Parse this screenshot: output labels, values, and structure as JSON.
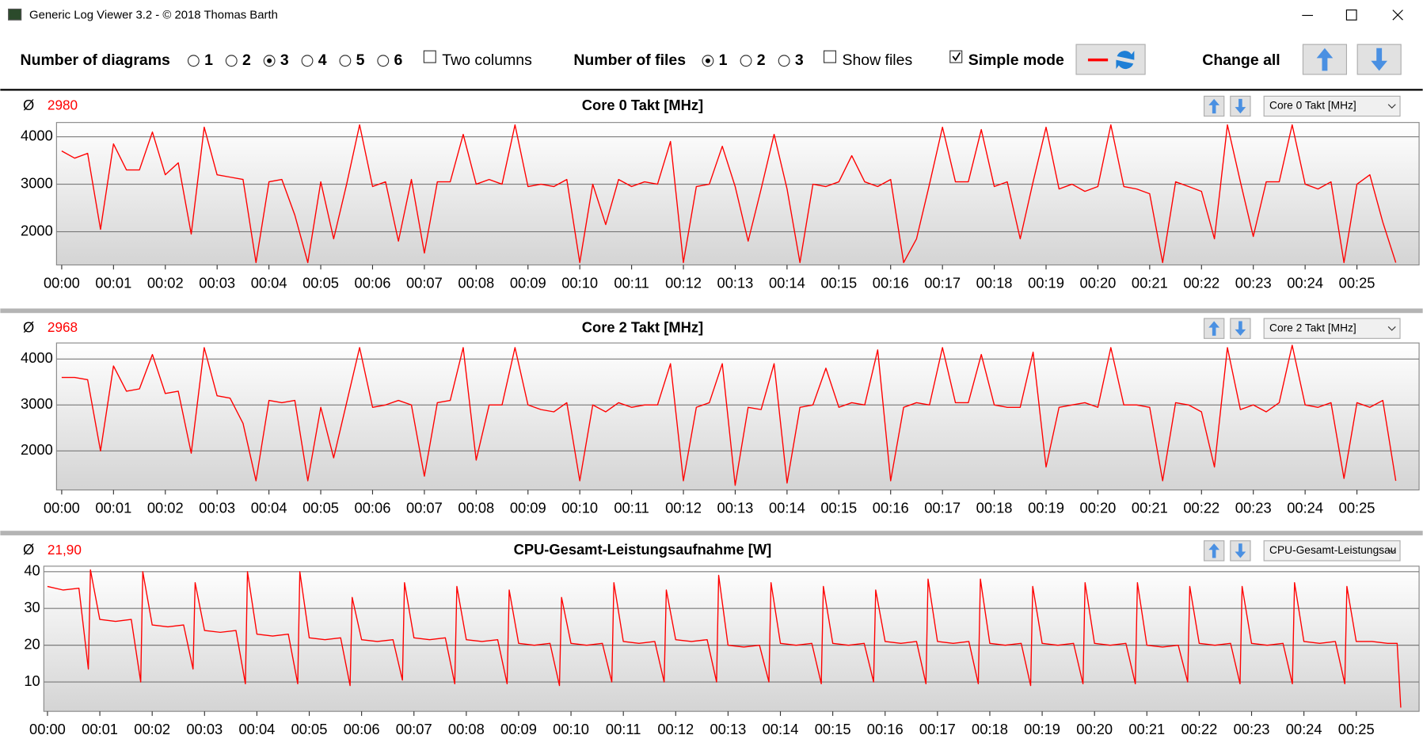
{
  "window": {
    "title": "Generic Log Viewer 3.2 - © 2018 Thomas Barth"
  },
  "toolbar": {
    "diagrams_label": "Number of diagrams",
    "diagram_options": [
      "1",
      "2",
      "3",
      "4",
      "5",
      "6"
    ],
    "diagrams_selected": 2,
    "two_columns": {
      "label": "Two columns",
      "checked": false
    },
    "files_label": "Number of files",
    "file_options": [
      "1",
      "2",
      "3"
    ],
    "files_selected": 0,
    "show_files": {
      "label": "Show files",
      "checked": false
    },
    "simple_mode": {
      "label": "Simple mode",
      "checked": true
    },
    "change_all_label": "Change all"
  },
  "chart_data": [
    {
      "type": "line",
      "title": "Core 0 Takt [MHz]",
      "average_label": "Ø",
      "average": "2980",
      "selector": "Core 0 Takt [MHz]",
      "color": "#ff0000",
      "grid": true,
      "x": [
        0,
        0.25,
        0.5,
        0.75,
        1,
        1.25,
        1.5,
        1.75,
        2,
        2.25,
        2.5,
        2.75,
        3,
        3.25,
        3.5,
        3.75,
        4,
        4.25,
        4.5,
        4.75,
        5,
        5.25,
        5.5,
        5.75,
        6,
        6.25,
        6.5,
        6.75,
        7,
        7.25,
        7.5,
        7.75,
        8,
        8.25,
        8.5,
        8.75,
        9,
        9.25,
        9.5,
        9.75,
        10,
        10.25,
        10.5,
        10.75,
        11,
        11.25,
        11.5,
        11.75,
        12,
        12.25,
        12.5,
        12.75,
        13,
        13.25,
        13.5,
        13.75,
        14,
        14.25,
        14.5,
        14.75,
        15,
        15.25,
        15.5,
        15.75,
        16,
        16.25,
        16.5,
        16.75,
        17,
        17.25,
        17.5,
        17.75,
        18,
        18.25,
        18.5,
        18.75,
        19,
        19.25,
        19.5,
        19.75,
        20,
        20.25,
        20.5,
        20.75,
        21,
        21.25,
        21.5,
        21.75,
        22,
        22.25,
        22.5,
        22.75,
        23,
        23.25,
        23.5,
        23.75,
        24,
        24.25,
        24.5,
        24.75,
        25,
        25.25,
        25.5,
        25.75
      ],
      "values": [
        3700,
        3550,
        3650,
        2050,
        3850,
        3300,
        3300,
        4100,
        3200,
        3450,
        1950,
        4200,
        3200,
        3150,
        3100,
        1350,
        3050,
        3100,
        2350,
        1350,
        3050,
        1850,
        3000,
        4250,
        2950,
        3050,
        1800,
        3100,
        1550,
        3050,
        3050,
        4050,
        3000,
        3100,
        3000,
        4250,
        2950,
        3000,
        2950,
        3100,
        1350,
        3000,
        2150,
        3100,
        2950,
        3050,
        3000,
        3900,
        1350,
        2950,
        3000,
        3800,
        2950,
        1800,
        2900,
        4050,
        2900,
        1350,
        3000,
        2950,
        3050,
        3600,
        3050,
        2950,
        3100,
        1350,
        1850,
        3000,
        4200,
        3050,
        3050,
        4150,
        2950,
        3050,
        1850,
        3050,
        4200,
        2900,
        3000,
        2850,
        2950,
        4250,
        2950,
        2900,
        2800,
        1350,
        3050,
        2950,
        2850,
        1850,
        4250,
        3050,
        1900,
        3050,
        3050,
        4250,
        3000,
        2900,
        3050,
        1350,
        3000,
        3200,
        2200,
        1350
      ],
      "xlim": [
        -0.1,
        26.2
      ],
      "xticks": [
        {
          "value": 0,
          "label": "00:00"
        },
        {
          "value": 1,
          "label": "00:01"
        },
        {
          "value": 2,
          "label": "00:02"
        },
        {
          "value": 3,
          "label": "00:03"
        },
        {
          "value": 4,
          "label": "00:04"
        },
        {
          "value": 5,
          "label": "00:05"
        },
        {
          "value": 6,
          "label": "00:06"
        },
        {
          "value": 7,
          "label": "00:07"
        },
        {
          "value": 8,
          "label": "00:08"
        },
        {
          "value": 9,
          "label": "00:09"
        },
        {
          "value": 10,
          "label": "00:10"
        },
        {
          "value": 11,
          "label": "00:11"
        },
        {
          "value": 12,
          "label": "00:12"
        },
        {
          "value": 13,
          "label": "00:13"
        },
        {
          "value": 14,
          "label": "00:14"
        },
        {
          "value": 15,
          "label": "00:15"
        },
        {
          "value": 16,
          "label": "00:16"
        },
        {
          "value": 17,
          "label": "00:17"
        },
        {
          "value": 18,
          "label": "00:18"
        },
        {
          "value": 19,
          "label": "00:19"
        },
        {
          "value": 20,
          "label": "00:20"
        },
        {
          "value": 21,
          "label": "00:21"
        },
        {
          "value": 22,
          "label": "00:22"
        },
        {
          "value": 23,
          "label": "00:23"
        },
        {
          "value": 24,
          "label": "00:24"
        },
        {
          "value": 25,
          "label": "00:25"
        }
      ],
      "ylim": [
        1300,
        4300
      ],
      "yticks": [
        2000,
        3000,
        4000
      ]
    },
    {
      "type": "line",
      "title": "Core 2 Takt [MHz]",
      "average_label": "Ø",
      "average": "2968",
      "selector": "Core 2 Takt [MHz]",
      "color": "#ff0000",
      "grid": true,
      "x": [
        0,
        0.25,
        0.5,
        0.75,
        1,
        1.25,
        1.5,
        1.75,
        2,
        2.25,
        2.5,
        2.75,
        3,
        3.25,
        3.5,
        3.75,
        4,
        4.25,
        4.5,
        4.75,
        5,
        5.25,
        5.5,
        5.75,
        6,
        6.25,
        6.5,
        6.75,
        7,
        7.25,
        7.5,
        7.75,
        8,
        8.25,
        8.5,
        8.75,
        9,
        9.25,
        9.5,
        9.75,
        10,
        10.25,
        10.5,
        10.75,
        11,
        11.25,
        11.5,
        11.75,
        12,
        12.25,
        12.5,
        12.75,
        13,
        13.25,
        13.5,
        13.75,
        14,
        14.25,
        14.5,
        14.75,
        15,
        15.25,
        15.5,
        15.75,
        16,
        16.25,
        16.5,
        16.75,
        17,
        17.25,
        17.5,
        17.75,
        18,
        18.25,
        18.5,
        18.75,
        19,
        19.25,
        19.5,
        19.75,
        20,
        20.25,
        20.5,
        20.75,
        21,
        21.25,
        21.5,
        21.75,
        22,
        22.25,
        22.5,
        22.75,
        23,
        23.25,
        23.5,
        23.75,
        24,
        24.25,
        24.5,
        24.75,
        25,
        25.25,
        25.5,
        25.75
      ],
      "values": [
        3600,
        3600,
        3550,
        2000,
        3850,
        3300,
        3350,
        4100,
        3250,
        3300,
        1950,
        4250,
        3200,
        3150,
        2600,
        1350,
        3100,
        3050,
        3100,
        1350,
        2950,
        1850,
        3050,
        4250,
        2950,
        3000,
        3100,
        3000,
        1450,
        3050,
        3100,
        4250,
        1800,
        3000,
        3000,
        4250,
        3000,
        2900,
        2850,
        3050,
        1350,
        3000,
        2850,
        3050,
        2950,
        3000,
        3000,
        3900,
        1350,
        2950,
        3050,
        3900,
        1250,
        2950,
        2900,
        3900,
        1300,
        2950,
        3000,
        3800,
        2950,
        3050,
        3000,
        4200,
        1350,
        2950,
        3050,
        3000,
        4250,
        3050,
        3050,
        4100,
        3000,
        2950,
        2950,
        4150,
        1650,
        2950,
        3000,
        3050,
        2950,
        4250,
        3000,
        3000,
        2950,
        1350,
        3050,
        3000,
        2850,
        1650,
        4250,
        2900,
        3000,
        2850,
        3050,
        4300,
        3000,
        2950,
        3050,
        1400,
        3050,
        2950,
        3100,
        1350
      ],
      "xlim": [
        -0.1,
        26.2
      ],
      "xticks": [
        {
          "value": 0,
          "label": "00:00"
        },
        {
          "value": 1,
          "label": "00:01"
        },
        {
          "value": 2,
          "label": "00:02"
        },
        {
          "value": 3,
          "label": "00:03"
        },
        {
          "value": 4,
          "label": "00:04"
        },
        {
          "value": 5,
          "label": "00:05"
        },
        {
          "value": 6,
          "label": "00:06"
        },
        {
          "value": 7,
          "label": "00:07"
        },
        {
          "value": 8,
          "label": "00:08"
        },
        {
          "value": 9,
          "label": "00:09"
        },
        {
          "value": 10,
          "label": "00:10"
        },
        {
          "value": 11,
          "label": "00:11"
        },
        {
          "value": 12,
          "label": "00:12"
        },
        {
          "value": 13,
          "label": "00:13"
        },
        {
          "value": 14,
          "label": "00:14"
        },
        {
          "value": 15,
          "label": "00:15"
        },
        {
          "value": 16,
          "label": "00:16"
        },
        {
          "value": 17,
          "label": "00:17"
        },
        {
          "value": 18,
          "label": "00:18"
        },
        {
          "value": 19,
          "label": "00:19"
        },
        {
          "value": 20,
          "label": "00:20"
        },
        {
          "value": 21,
          "label": "00:21"
        },
        {
          "value": 22,
          "label": "00:22"
        },
        {
          "value": 23,
          "label": "00:23"
        },
        {
          "value": 24,
          "label": "00:24"
        },
        {
          "value": 25,
          "label": "00:25"
        }
      ],
      "ylim": [
        1150,
        4350
      ],
      "yticks": [
        2000,
        3000,
        4000
      ]
    },
    {
      "type": "line",
      "title": "CPU-Gesamt-Leistungsaufnahme [W]",
      "average_label": "Ø",
      "average": "21,90",
      "selector": "CPU-Gesamt-Leistungsau",
      "color": "#ff0000",
      "grid": true,
      "x": [
        0,
        0.3,
        0.6,
        0.78,
        0.82,
        1,
        1.3,
        1.6,
        1.78,
        1.82,
        2,
        2.3,
        2.6,
        2.78,
        2.82,
        3,
        3.3,
        3.6,
        3.78,
        3.82,
        4,
        4.3,
        4.6,
        4.78,
        4.82,
        5,
        5.3,
        5.6,
        5.78,
        5.82,
        6,
        6.3,
        6.6,
        6.78,
        6.82,
        7,
        7.3,
        7.6,
        7.78,
        7.82,
        8,
        8.3,
        8.6,
        8.78,
        8.82,
        9,
        9.3,
        9.6,
        9.78,
        9.82,
        10,
        10.3,
        10.6,
        10.78,
        10.82,
        11,
        11.3,
        11.6,
        11.78,
        11.82,
        12,
        12.3,
        12.6,
        12.78,
        12.82,
        13,
        13.3,
        13.6,
        13.78,
        13.82,
        14,
        14.3,
        14.6,
        14.78,
        14.82,
        15,
        15.3,
        15.6,
        15.78,
        15.82,
        16,
        16.3,
        16.6,
        16.78,
        16.82,
        17,
        17.3,
        17.6,
        17.78,
        17.82,
        18,
        18.3,
        18.6,
        18.78,
        18.82,
        19,
        19.3,
        19.6,
        19.78,
        19.82,
        20,
        20.3,
        20.6,
        20.78,
        20.82,
        21,
        21.3,
        21.6,
        21.78,
        21.82,
        22,
        22.3,
        22.6,
        22.78,
        22.82,
        23,
        23.3,
        23.6,
        23.78,
        23.82,
        24,
        24.3,
        24.6,
        24.78,
        24.82,
        25,
        25.3,
        25.6,
        25.78,
        25.85
      ],
      "values": [
        36,
        35,
        35.5,
        13.5,
        40.5,
        27,
        26.5,
        27,
        10,
        40,
        25.5,
        25,
        25.5,
        13.5,
        37,
        24,
        23.5,
        24,
        9.5,
        40,
        23,
        22.5,
        23,
        9.5,
        40,
        22,
        21.5,
        22,
        9,
        33,
        21.5,
        21,
        21.5,
        10.5,
        37,
        22,
        21.5,
        22,
        9.5,
        36,
        21.5,
        21,
        21.5,
        9.5,
        35,
        20.5,
        20,
        20.5,
        9,
        33,
        20.5,
        20,
        20.5,
        10,
        37,
        21,
        20.5,
        21,
        10,
        35,
        21.5,
        21,
        21.5,
        10,
        39,
        20,
        19.5,
        20,
        10,
        37,
        20.5,
        20,
        20.5,
        9.5,
        36,
        20.5,
        20,
        20.5,
        10,
        35,
        21,
        20.5,
        21,
        9.5,
        38,
        21,
        20.5,
        21,
        9.5,
        38,
        20.5,
        20,
        20.5,
        9,
        36,
        20.5,
        20,
        20.5,
        9.5,
        37,
        20.5,
        20,
        20.5,
        9.5,
        37,
        20,
        19.5,
        20,
        10,
        36,
        20.5,
        20,
        20.5,
        9.5,
        36,
        20.5,
        20,
        20.5,
        9.5,
        37,
        21,
        20.5,
        21,
        9.5,
        36,
        21,
        21,
        20.5,
        20.5,
        3
      ],
      "xlim": [
        -0.07,
        26.2
      ],
      "xticks": [
        {
          "value": 0,
          "label": "00:00"
        },
        {
          "value": 1,
          "label": "00:01"
        },
        {
          "value": 2,
          "label": "00:02"
        },
        {
          "value": 3,
          "label": "00:03"
        },
        {
          "value": 4,
          "label": "00:04"
        },
        {
          "value": 5,
          "label": "00:05"
        },
        {
          "value": 6,
          "label": "00:06"
        },
        {
          "value": 7,
          "label": "00:07"
        },
        {
          "value": 8,
          "label": "00:08"
        },
        {
          "value": 9,
          "label": "00:09"
        },
        {
          "value": 10,
          "label": "00:10"
        },
        {
          "value": 11,
          "label": "00:11"
        },
        {
          "value": 12,
          "label": "00:12"
        },
        {
          "value": 13,
          "label": "00:13"
        },
        {
          "value": 14,
          "label": "00:14"
        },
        {
          "value": 15,
          "label": "00:15"
        },
        {
          "value": 16,
          "label": "00:16"
        },
        {
          "value": 17,
          "label": "00:17"
        },
        {
          "value": 18,
          "label": "00:18"
        },
        {
          "value": 19,
          "label": "00:19"
        },
        {
          "value": 20,
          "label": "00:20"
        },
        {
          "value": 21,
          "label": "00:21"
        },
        {
          "value": 22,
          "label": "00:22"
        },
        {
          "value": 23,
          "label": "00:23"
        },
        {
          "value": 24,
          "label": "00:24"
        },
        {
          "value": 25,
          "label": "00:25"
        }
      ],
      "ylim": [
        2,
        41.5
      ],
      "yticks": [
        10,
        20,
        30,
        40
      ]
    }
  ]
}
